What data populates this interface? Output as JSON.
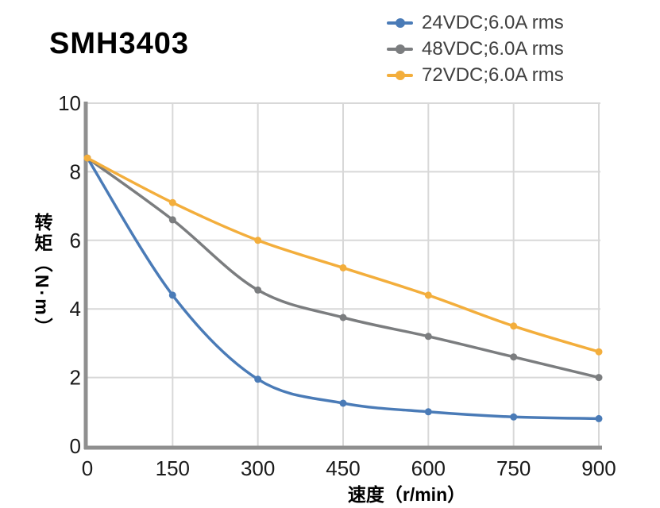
{
  "title": "SMH3403",
  "legend": [
    {
      "label": "24VDC;6.0A rms",
      "color": "#4A7BB7"
    },
    {
      "label": "48VDC;6.0A rms",
      "color": "#7B7D7F"
    },
    {
      "label": "72VDC;6.0A rms",
      "color": "#F3AE3C"
    }
  ],
  "chart_data": {
    "type": "line",
    "title": "SMH3403",
    "x": [
      0,
      150,
      300,
      450,
      600,
      750,
      900
    ],
    "series": [
      {
        "name": "24VDC;6.0A rms",
        "color": "#4A7BB7",
        "values": [
          8.4,
          4.4,
          1.95,
          1.25,
          1.0,
          0.85,
          0.8
        ]
      },
      {
        "name": "48VDC;6.0A rms",
        "color": "#7B7D7F",
        "values": [
          8.4,
          6.6,
          4.55,
          3.75,
          3.2,
          2.6,
          2.0
        ]
      },
      {
        "name": "72VDC;6.0A rms",
        "color": "#F3AE3C",
        "values": [
          8.4,
          7.1,
          6.0,
          5.2,
          4.4,
          3.5,
          2.75
        ]
      }
    ],
    "xlabel": "速度（r/min）",
    "ylabel": "转矩（N·m）",
    "xlim": [
      0,
      900
    ],
    "ylim": [
      0,
      10
    ],
    "xticks": [
      0,
      150,
      300,
      450,
      600,
      750,
      900
    ],
    "yticks": [
      0,
      2,
      4,
      6,
      8,
      10
    ],
    "grid": true,
    "legend_position": "top-right"
  },
  "colors": {
    "grid": "#D8D8D8",
    "axis": "#8F8F8F",
    "tick_label": "#1A1A1A",
    "legend_text": "#404040",
    "title": "#000000"
  }
}
